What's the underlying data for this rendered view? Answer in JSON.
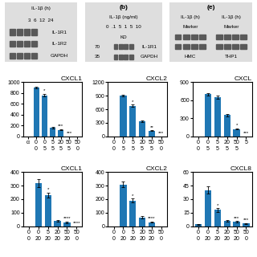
{
  "chart_data": [
    {
      "type": "gel",
      "annotations": [
        [
          "IL-1β (h)"
        ],
        [
          "3  6  12  24"
        ],
        [
          null,
          "IL-1R1"
        ],
        [
          null,
          "IL-1R2"
        ],
        [
          null,
          "GAPDH"
        ]
      ]
    },
    {
      "type": "gel",
      "title": "(b)",
      "annotations": [
        [
          "IL-1β (ng/ml)"
        ],
        [
          "0  .1  5  1  5  10"
        ],
        [
          "KD"
        ],
        [
          "70",
          null,
          "IL-1R1"
        ],
        [
          "35",
          null,
          "GAPDH"
        ]
      ]
    },
    {
      "type": "gel",
      "title": "(e)",
      "annotations": [
        [
          "IL-1β (h)",
          "IL-1β (h)"
        ],
        [
          "Marker",
          "Marker"
        ],
        [
          null,
          null
        ],
        [
          null,
          null
        ],
        [
          "HMC",
          "THP1"
        ]
      ]
    },
    {
      "type": "bar",
      "title": "CXCL1",
      "categories": [
        "α",
        "0\n0",
        "0\n5",
        "5\n5",
        "20\n5",
        "50\n5",
        "50\n0"
      ],
      "values": [
        0,
        900,
        760,
        160,
        120,
        0,
        null
      ],
      "errors": [
        0,
        20,
        25,
        15,
        12,
        0,
        null
      ],
      "annotations": [
        null,
        null,
        "*",
        null,
        "***",
        "***",
        null
      ],
      "ylim": [
        0,
        1000
      ],
      "yticks": [
        0,
        200,
        400,
        600,
        800,
        1000
      ]
    },
    {
      "type": "bar",
      "title": "CXCL2",
      "categories": [
        "0\n0",
        "0\n5",
        "5\n5",
        "20\n5",
        "50\n5",
        "50\n0"
      ],
      "values": [
        0,
        900,
        680,
        330,
        120,
        0
      ],
      "errors": [
        0,
        15,
        20,
        20,
        10,
        0
      ],
      "annotations": [
        null,
        null,
        "*",
        null,
        "**",
        "***"
      ],
      "ylim": [
        0,
        1200
      ],
      "yticks": [
        0,
        300,
        600,
        900,
        1200
      ]
    },
    {
      "type": "bar",
      "title": "CXCL",
      "categories": [
        "0\n0",
        "0\n5",
        "5\n5",
        "20\n5",
        "50\n5",
        "5"
      ],
      "values": [
        0,
        700,
        650,
        350,
        120,
        0
      ],
      "errors": [
        0,
        20,
        25,
        20,
        10,
        0
      ],
      "annotations": [
        null,
        null,
        null,
        null,
        "*",
        "***"
      ],
      "ylim": [
        0,
        900
      ],
      "yticks": [
        0,
        300,
        600,
        900
      ]
    },
    {
      "type": "bar",
      "title": "CXCL1",
      "categories": [
        "0\n0",
        "0\n20",
        "5\n20",
        "20\n20",
        "50\n20",
        "50\n0"
      ],
      "values": [
        0,
        320,
        230,
        40,
        30,
        0
      ],
      "errors": [
        0,
        30,
        20,
        8,
        6,
        0
      ],
      "annotations": [
        null,
        null,
        "*",
        null,
        "****",
        "****"
      ],
      "ylim": [
        0,
        400
      ],
      "yticks": [
        0,
        100,
        200,
        300,
        400
      ]
    },
    {
      "type": "bar",
      "title": "CXCL2",
      "categories": [
        "0\n0",
        "0\n20",
        "5\n20",
        "20\n20",
        "50\n20",
        "50\n0"
      ],
      "values": [
        0,
        310,
        190,
        65,
        30,
        0
      ],
      "errors": [
        0,
        20,
        15,
        8,
        5,
        0
      ],
      "annotations": [
        null,
        null,
        "*",
        null,
        "****",
        null
      ],
      "ylim": [
        0,
        400
      ],
      "yticks": [
        0,
        100,
        200,
        300,
        400
      ]
    },
    {
      "type": "bar",
      "title": "CXCL8",
      "categories": [
        "0\n0",
        "0\n20",
        "5\n20",
        "20\n20",
        "50\n20",
        "50\n0"
      ],
      "values": [
        2,
        40,
        18,
        6,
        5,
        3
      ],
      "errors": [
        0.5,
        4,
        2,
        1,
        0.8,
        0.5
      ],
      "annotations": [
        null,
        null,
        "*",
        null,
        "***",
        "***"
      ],
      "ylim": [
        0,
        60
      ],
      "yticks": [
        0,
        15,
        30,
        45,
        60
      ]
    }
  ]
}
